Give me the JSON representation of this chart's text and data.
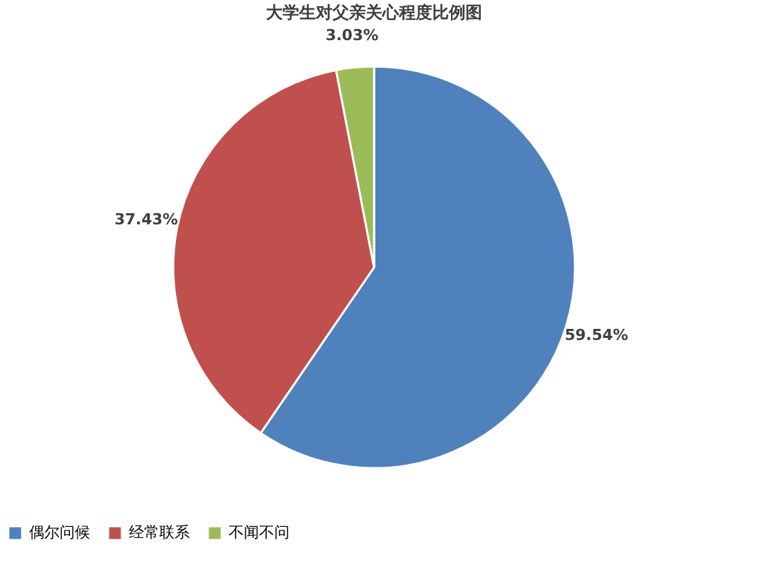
{
  "chart_data": {
    "type": "pie",
    "title": "大学生对父亲关心程度比例图",
    "categories": [
      "偶尔问候",
      "经常联系",
      "不闻不问"
    ],
    "values": [
      59.54,
      37.43,
      3.03
    ],
    "colors": [
      "#4f81bd",
      "#c0504d",
      "#9bbb59"
    ],
    "value_labels": [
      "59.54%",
      "37.43%",
      "3.03%"
    ],
    "legend": "bottom"
  }
}
